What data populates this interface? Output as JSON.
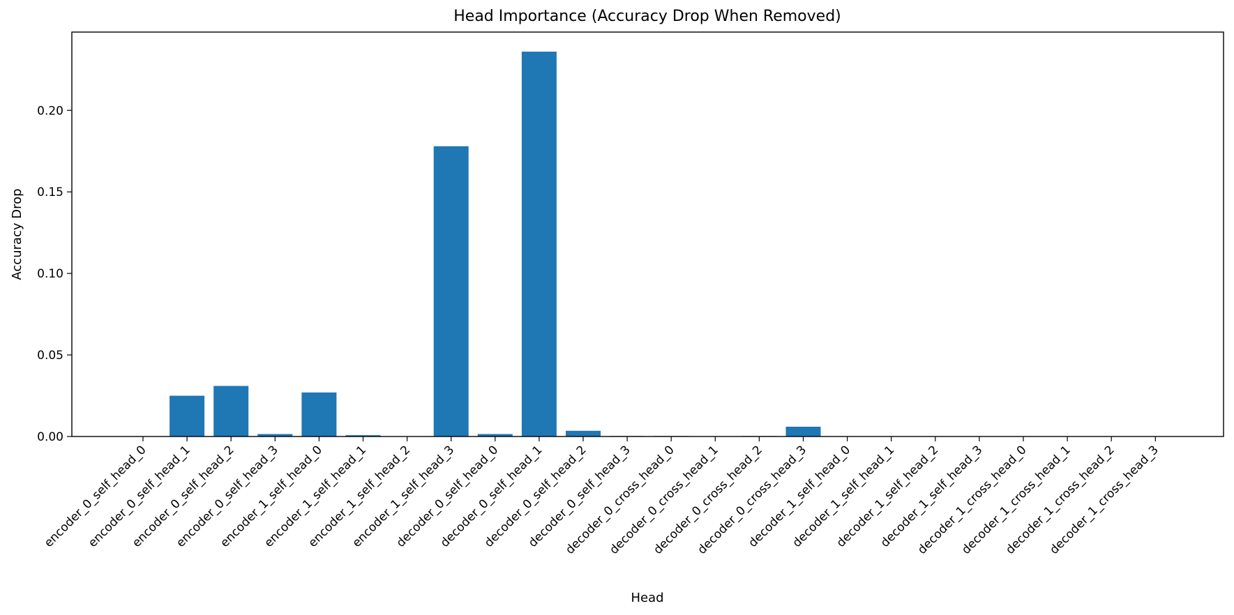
{
  "chart_data": {
    "type": "bar",
    "title": "Head Importance (Accuracy Drop When Removed)",
    "xlabel": "Head",
    "ylabel": "Accuracy Drop",
    "ylim": [
      0,
      0.248
    ],
    "yticks": [
      0.0,
      0.05,
      0.1,
      0.15,
      0.2
    ],
    "ytick_labels": [
      "0.00",
      "0.05",
      "0.10",
      "0.15",
      "0.20"
    ],
    "grid": false,
    "bar_color": "#1f77b4",
    "categories": [
      "encoder_0_self_head_0",
      "encoder_0_self_head_1",
      "encoder_0_self_head_2",
      "encoder_0_self_head_3",
      "encoder_1_self_head_0",
      "encoder_1_self_head_1",
      "encoder_1_self_head_2",
      "encoder_1_self_head_3",
      "decoder_0_self_head_0",
      "decoder_0_self_head_1",
      "decoder_0_self_head_2",
      "decoder_0_self_head_3",
      "decoder_0_cross_head_0",
      "decoder_0_cross_head_1",
      "decoder_0_cross_head_2",
      "decoder_0_cross_head_3",
      "decoder_1_self_head_0",
      "decoder_1_self_head_1",
      "decoder_1_self_head_2",
      "decoder_1_self_head_3",
      "decoder_1_cross_head_0",
      "decoder_1_cross_head_1",
      "decoder_1_cross_head_2",
      "decoder_1_cross_head_3"
    ],
    "values": [
      0.0,
      0.025,
      0.031,
      0.0015,
      0.027,
      0.0008,
      0.0,
      0.178,
      0.0015,
      0.236,
      0.0035,
      0.0003,
      0.0003,
      0.0,
      0.0003,
      0.006,
      0.0,
      0.0,
      0.0,
      0.0,
      0.0,
      0.0,
      0.0,
      0.0
    ]
  }
}
